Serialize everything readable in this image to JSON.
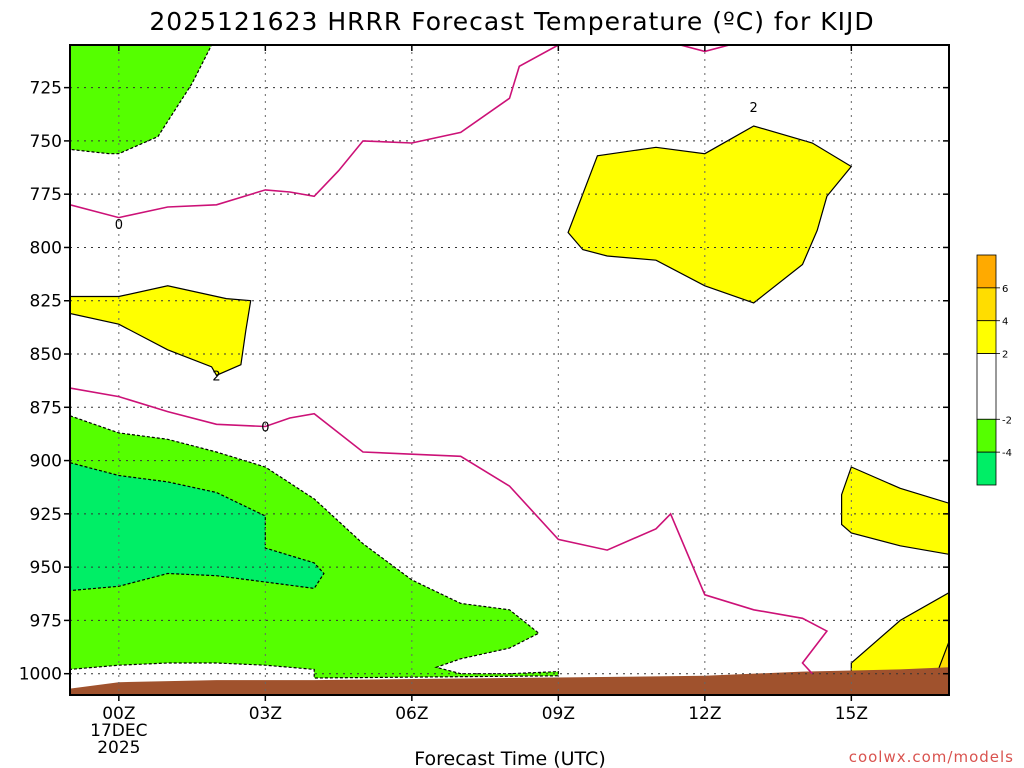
{
  "title": "2025121623 HRRR Forecast Temperature (ºC) for KIJD",
  "credit": "coolwx.com/models",
  "colors": {
    "green_light": "#00ee66",
    "green": "#55ff00",
    "yellow": "#ffff00",
    "gold": "#ffdd00",
    "orange": "#ffaa00",
    "ground": "#a0522d",
    "zero_line": "#cc1177",
    "grid": "#666666"
  },
  "chart_data": {
    "type": "contour",
    "title": "2025121623 HRRR Forecast Temperature (ºC) for KIJD",
    "xlabel": "Forecast Time (UTC)",
    "ylabel": "",
    "x_ticks": [
      {
        "label": "00Z",
        "label2": "17DEC",
        "label3": "2025"
      },
      {
        "label": "03Z"
      },
      {
        "label": "06Z"
      },
      {
        "label": "09Z"
      },
      {
        "label": "12Z"
      },
      {
        "label": "15Z"
      }
    ],
    "x_tick_hours": [
      0,
      3,
      6,
      9,
      12,
      15
    ],
    "xlim_hours": [
      -1,
      17
    ],
    "y_ticks": [
      "725",
      "750",
      "775",
      "800",
      "825",
      "850",
      "875",
      "900",
      "925",
      "950",
      "975",
      "1000"
    ],
    "y_tick_values": [
      725,
      750,
      775,
      800,
      825,
      850,
      875,
      900,
      925,
      950,
      975,
      1000
    ],
    "ylim_hPa": [
      705,
      1010
    ],
    "y_inverted": true,
    "grid": true,
    "contour_labels": [
      {
        "text": "0",
        "x": 0,
        "y": 789
      },
      {
        "text": "0",
        "x": 3,
        "y": 884
      },
      {
        "text": "2",
        "x": 2,
        "y": 860
      },
      {
        "text": "2",
        "x": 13,
        "y": 734
      }
    ],
    "regions": [
      {
        "level": "-4",
        "color_key": "green",
        "points": [
          [
            -1,
            705
          ],
          [
            1.9,
            705
          ],
          [
            1.5,
            723
          ],
          [
            0.8,
            748
          ],
          [
            0,
            756
          ],
          [
            -0.2,
            756
          ],
          [
            -1,
            754
          ]
        ]
      },
      {
        "level": "2",
        "color_key": "yellow",
        "points": [
          [
            -1,
            823
          ],
          [
            0,
            823
          ],
          [
            1,
            818
          ],
          [
            2.2,
            824
          ],
          [
            2.7,
            825
          ],
          [
            2.6,
            839
          ],
          [
            2.5,
            855
          ],
          [
            2,
            860
          ],
          [
            1.9,
            856
          ],
          [
            1,
            848
          ],
          [
            0,
            836
          ],
          [
            -1,
            831
          ]
        ]
      },
      {
        "level": "2",
        "color_key": "yellow",
        "points": [
          [
            9.2,
            793
          ],
          [
            9.8,
            757
          ],
          [
            11,
            753
          ],
          [
            12,
            756
          ],
          [
            13,
            743
          ],
          [
            14.2,
            751
          ],
          [
            15,
            762
          ],
          [
            15,
            762
          ],
          [
            14.5,
            776
          ],
          [
            14.3,
            792
          ],
          [
            14,
            808
          ],
          [
            13,
            826
          ],
          [
            12,
            818
          ],
          [
            11,
            806
          ],
          [
            10,
            804
          ],
          [
            9.5,
            801
          ]
        ]
      },
      {
        "level": "-4",
        "color_key": "green",
        "points": [
          [
            -1,
            879
          ],
          [
            0,
            887
          ],
          [
            1,
            890
          ],
          [
            2,
            896
          ],
          [
            3,
            903
          ],
          [
            4,
            918
          ],
          [
            5,
            939
          ],
          [
            6,
            956
          ],
          [
            7,
            967
          ],
          [
            8,
            970
          ],
          [
            8.6,
            981
          ],
          [
            8,
            988
          ],
          [
            7,
            993
          ],
          [
            6.5,
            997
          ],
          [
            7,
            1000
          ],
          [
            8,
            1000
          ],
          [
            9,
            999
          ],
          [
            9,
            1001
          ],
          [
            4,
            1002
          ],
          [
            4,
            998
          ],
          [
            3,
            996
          ],
          [
            2,
            995
          ],
          [
            1,
            995
          ],
          [
            0,
            996
          ],
          [
            -1,
            998
          ]
        ]
      },
      {
        "level": "-6",
        "color_key": "green_light",
        "points": [
          [
            -1,
            901
          ],
          [
            0,
            907
          ],
          [
            1,
            910
          ],
          [
            2,
            915
          ],
          [
            3,
            926
          ],
          [
            3,
            941
          ],
          [
            4,
            948
          ],
          [
            4.2,
            953
          ],
          [
            4,
            960
          ],
          [
            3,
            957
          ],
          [
            2,
            954
          ],
          [
            1,
            953
          ],
          [
            0,
            959
          ],
          [
            -1,
            961
          ]
        ]
      },
      {
        "level": "2",
        "color_key": "yellow",
        "points": [
          [
            14.8,
            916
          ],
          [
            15,
            903
          ],
          [
            16,
            913
          ],
          [
            17.5,
            920
          ],
          [
            17.5,
            1005
          ],
          [
            15,
            1000
          ],
          [
            15,
            995
          ],
          [
            16,
            975
          ],
          [
            17,
            962
          ],
          [
            17,
            950
          ],
          [
            17,
            944
          ],
          [
            16,
            940
          ],
          [
            15,
            934
          ],
          [
            14.8,
            930
          ]
        ]
      },
      {
        "level": "4",
        "color_key": "gold",
        "points": [
          [
            16.8,
            997
          ],
          [
            17.5,
            985
          ],
          [
            17.5,
            1005
          ],
          [
            16.8,
            1003
          ]
        ]
      }
    ],
    "zero_lines": [
      [
        [
          -1,
          780
        ],
        [
          0,
          786
        ],
        [
          1,
          781
        ],
        [
          2,
          780
        ],
        [
          3,
          773
        ],
        [
          3.5,
          774
        ],
        [
          4,
          776
        ],
        [
          4.5,
          764
        ],
        [
          5,
          750
        ],
        [
          6,
          751
        ],
        [
          7,
          746
        ],
        [
          8,
          730
        ],
        [
          8.2,
          715
        ],
        [
          9,
          705
        ]
      ],
      [
        [
          11.5,
          705
        ],
        [
          12,
          708
        ],
        [
          12.5,
          705
        ]
      ],
      [
        [
          -1,
          866
        ],
        [
          0,
          870
        ],
        [
          1,
          877
        ],
        [
          2,
          883
        ],
        [
          3,
          884
        ],
        [
          3.5,
          880
        ],
        [
          4,
          878
        ],
        [
          5,
          896
        ],
        [
          6,
          897
        ],
        [
          7,
          898
        ],
        [
          8,
          912
        ],
        [
          9,
          937
        ],
        [
          10,
          942
        ],
        [
          11,
          932
        ],
        [
          11.3,
          925
        ],
        [
          12,
          963
        ],
        [
          13,
          970
        ],
        [
          14,
          974
        ],
        [
          14.5,
          980
        ],
        [
          14,
          995
        ],
        [
          14.2,
          1000
        ]
      ]
    ],
    "ground": {
      "color_key": "ground",
      "top_points": [
        [
          -1,
          1007
        ],
        [
          0,
          1004
        ],
        [
          2,
          1003
        ],
        [
          4,
          1003
        ],
        [
          8,
          1002
        ],
        [
          12,
          1001
        ],
        [
          14,
          999
        ],
        [
          16,
          998
        ],
        [
          17.5,
          997
        ]
      ]
    }
  },
  "colorbar": {
    "labels": [
      "6",
      "4",
      "2",
      "-2",
      "-4"
    ],
    "label_values": [
      6,
      4,
      2,
      -2,
      -4
    ],
    "bins": [
      {
        "from": 6,
        "to": 8,
        "color_key": "orange"
      },
      {
        "from": 4,
        "to": 6,
        "color_key": "gold"
      },
      {
        "from": 2,
        "to": 4,
        "color_key": "yellow"
      },
      {
        "from": -2,
        "to": 2,
        "color": "#ffffff"
      },
      {
        "from": -4,
        "to": -2,
        "color_key": "green"
      },
      {
        "from": -6,
        "to": -4,
        "color_key": "green_light"
      }
    ]
  }
}
